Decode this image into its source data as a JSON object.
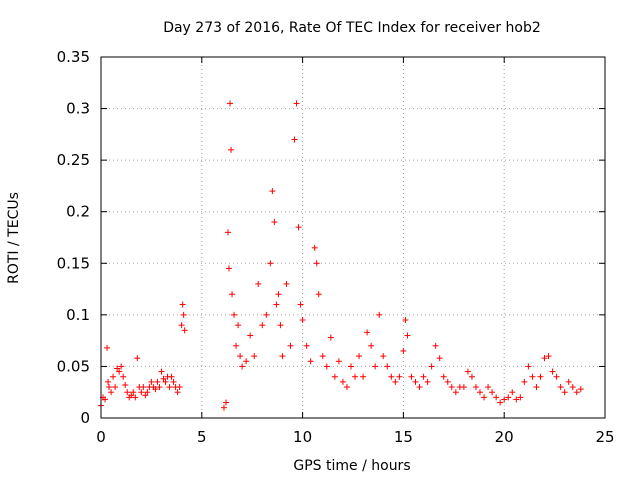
{
  "chart_data": {
    "type": "scatter",
    "title": "Day 273 of 2016, Rate Of TEC Index for receiver hob2",
    "xlabel": "GPS time / hours",
    "ylabel": "ROTI / TECUs",
    "xlim": [
      0,
      25
    ],
    "ylim": [
      0,
      0.35
    ],
    "xticks": [
      0,
      5,
      10,
      15,
      20,
      25
    ],
    "xtick_labels": [
      "0",
      "5",
      "10",
      "15",
      "20",
      "25"
    ],
    "yticks": [
      0,
      0.05,
      0.1,
      0.15,
      0.2,
      0.25,
      0.3,
      0.35
    ],
    "ytick_labels": [
      "0",
      "0.05",
      "0.1",
      "0.15",
      "0.2",
      "0.25",
      "0.3",
      "0.35"
    ],
    "grid": true,
    "marker": "+",
    "marker_color": "#ff0000",
    "series": [
      {
        "name": "ROTI",
        "x": [
          0.0,
          0.1,
          0.2,
          0.3,
          0.35,
          0.4,
          0.5,
          0.6,
          0.7,
          0.8,
          0.9,
          1.0,
          1.1,
          1.2,
          1.3,
          1.4,
          1.5,
          1.6,
          1.7,
          1.8,
          1.9,
          2.0,
          2.1,
          2.2,
          2.3,
          2.4,
          2.5,
          2.6,
          2.7,
          2.8,
          2.9,
          3.0,
          3.1,
          3.2,
          3.3,
          3.4,
          3.5,
          3.6,
          3.7,
          3.8,
          3.9,
          4.0,
          4.05,
          4.1,
          4.15,
          6.1,
          6.2,
          6.3,
          6.35,
          6.4,
          6.45,
          6.5,
          6.6,
          6.7,
          6.8,
          6.9,
          7.0,
          7.2,
          7.4,
          7.6,
          7.8,
          8.0,
          8.2,
          8.4,
          8.5,
          8.6,
          8.7,
          8.8,
          8.9,
          9.0,
          9.2,
          9.4,
          9.6,
          9.7,
          9.8,
          9.9,
          10.0,
          10.2,
          10.4,
          10.6,
          10.7,
          10.8,
          11.0,
          11.2,
          11.4,
          11.6,
          11.8,
          12.0,
          12.2,
          12.4,
          12.6,
          12.8,
          13.0,
          13.2,
          13.4,
          13.6,
          13.8,
          14.0,
          14.2,
          14.4,
          14.6,
          14.8,
          15.0,
          15.1,
          15.2,
          15.4,
          15.6,
          15.8,
          16.0,
          16.2,
          16.4,
          16.6,
          16.8,
          17.0,
          17.2,
          17.4,
          17.6,
          17.8,
          18.0,
          18.2,
          18.4,
          18.6,
          18.8,
          19.0,
          19.2,
          19.4,
          19.6,
          19.8,
          20.0,
          20.2,
          20.4,
          20.6,
          20.8,
          21.0,
          21.2,
          21.4,
          21.6,
          21.8,
          22.0,
          22.2,
          22.4,
          22.6,
          22.8,
          23.0,
          23.2,
          23.4,
          23.6,
          23.8
        ],
        "y": [
          0.012,
          0.02,
          0.018,
          0.068,
          0.035,
          0.03,
          0.025,
          0.04,
          0.03,
          0.048,
          0.045,
          0.05,
          0.04,
          0.032,
          0.025,
          0.02,
          0.022,
          0.025,
          0.02,
          0.058,
          0.03,
          0.025,
          0.03,
          0.022,
          0.025,
          0.03,
          0.035,
          0.03,
          0.028,
          0.035,
          0.03,
          0.045,
          0.038,
          0.035,
          0.04,
          0.03,
          0.04,
          0.035,
          0.03,
          0.025,
          0.03,
          0.09,
          0.11,
          0.1,
          0.085,
          0.01,
          0.015,
          0.18,
          0.145,
          0.305,
          0.26,
          0.12,
          0.1,
          0.07,
          0.09,
          0.06,
          0.05,
          0.055,
          0.08,
          0.06,
          0.13,
          0.09,
          0.1,
          0.15,
          0.22,
          0.19,
          0.11,
          0.12,
          0.09,
          0.06,
          0.13,
          0.07,
          0.27,
          0.305,
          0.185,
          0.11,
          0.095,
          0.07,
          0.055,
          0.165,
          0.15,
          0.12,
          0.06,
          0.05,
          0.078,
          0.04,
          0.055,
          0.035,
          0.03,
          0.05,
          0.04,
          0.06,
          0.04,
          0.083,
          0.07,
          0.05,
          0.1,
          0.06,
          0.05,
          0.04,
          0.035,
          0.04,
          0.065,
          0.095,
          0.08,
          0.04,
          0.035,
          0.03,
          0.04,
          0.035,
          0.05,
          0.07,
          0.058,
          0.04,
          0.035,
          0.03,
          0.025,
          0.03,
          0.03,
          0.045,
          0.04,
          0.03,
          0.025,
          0.02,
          0.03,
          0.025,
          0.02,
          0.015,
          0.018,
          0.02,
          0.025,
          0.018,
          0.02,
          0.035,
          0.05,
          0.04,
          0.03,
          0.04,
          0.058,
          0.06,
          0.045,
          0.04,
          0.03,
          0.025,
          0.035,
          0.03,
          0.025,
          0.028
        ]
      }
    ]
  }
}
